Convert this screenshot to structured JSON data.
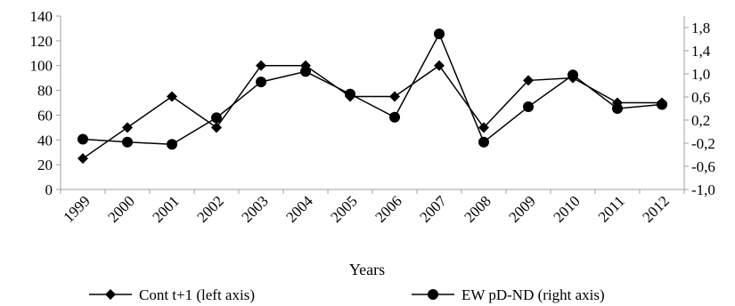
{
  "chart_data": {
    "type": "line",
    "xlabel": "Years",
    "categories": [
      "1999",
      "2000",
      "2001",
      "2002",
      "2003",
      "2004",
      "2005",
      "2006",
      "2007",
      "2008",
      "2009",
      "2010",
      "2011",
      "2012"
    ],
    "left_axis": {
      "min": 0,
      "max": 140,
      "step": 20,
      "ticks": [
        "0",
        "20",
        "40",
        "60",
        "80",
        "100",
        "120",
        "140"
      ]
    },
    "right_axis": {
      "min": -1.0,
      "max": 2.0,
      "step": 0.4,
      "ticks": [
        "-1,0",
        "-0,6",
        "-0,2",
        "0,2",
        "0,6",
        "1,0",
        "1,4",
        "1,8"
      ]
    },
    "grid": false,
    "legend_position": "bottom",
    "series": [
      {
        "name": "Cont t+1 (left axis)",
        "axis": "left",
        "marker": "diamond",
        "values": [
          25,
          50,
          75,
          50,
          100,
          100,
          75,
          75,
          100,
          50,
          88,
          90,
          70,
          70
        ]
      },
      {
        "name": "EW pD-ND (right axis)",
        "axis": "right",
        "marker": "circle",
        "values": [
          -0.13,
          -0.18,
          -0.22,
          0.24,
          0.86,
          1.04,
          0.65,
          0.25,
          1.69,
          -0.18,
          0.43,
          0.98,
          0.4,
          0.47
        ]
      }
    ],
    "colors": {
      "line": "#000000",
      "axis": "#a0a0a0"
    }
  }
}
